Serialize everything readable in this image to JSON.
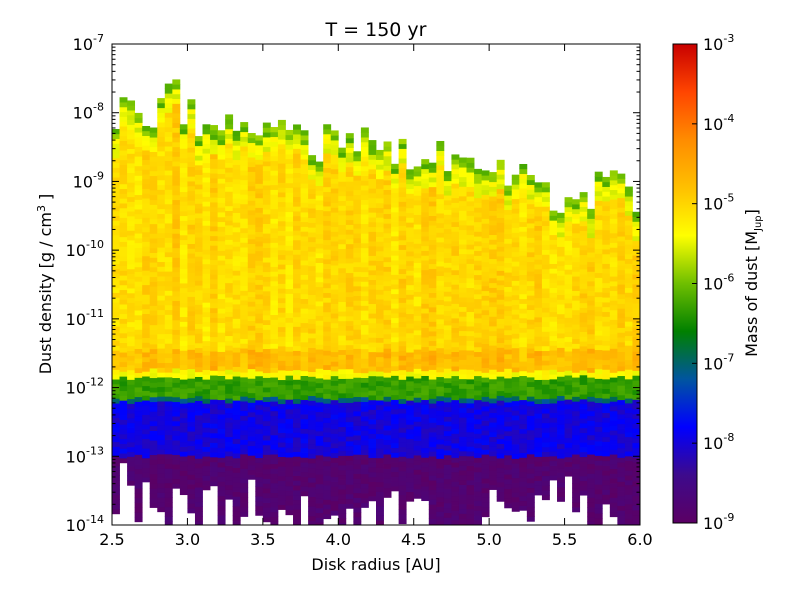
{
  "chart_data": {
    "type": "heatmap",
    "title": "T =  150 yr",
    "xlabel": "Disk radius [AU]",
    "ylabel": {
      "prefix": "Dust density [g / cm",
      "sup": "3",
      "suffix": " ]"
    },
    "xlim": [
      2.5,
      6.0
    ],
    "ylim": [
      1e-14,
      1e-07
    ],
    "yscale": "log",
    "xticks": [
      "2.5",
      "3.0",
      "3.5",
      "4.0",
      "4.5",
      "5.0",
      "5.5",
      "6.0"
    ],
    "yticks": [
      {
        "base": "10",
        "exp": "-14"
      },
      {
        "base": "10",
        "exp": "-13"
      },
      {
        "base": "10",
        "exp": "-12"
      },
      {
        "base": "10",
        "exp": "-11"
      },
      {
        "base": "10",
        "exp": "-10"
      },
      {
        "base": "10",
        "exp": "-9"
      },
      {
        "base": "10",
        "exp": "-8"
      },
      {
        "base": "10",
        "exp": "-7"
      }
    ],
    "colorbar": {
      "label": {
        "prefix": "Mass of dust [M",
        "sub": "Jup",
        "suffix": "]"
      },
      "scale": "log",
      "range": [
        1e-09,
        0.001
      ],
      "ticks": [
        {
          "base": "10",
          "exp": "-9"
        },
        {
          "base": "10",
          "exp": "-8"
        },
        {
          "base": "10",
          "exp": "-7"
        },
        {
          "base": "10",
          "exp": "-6"
        },
        {
          "base": "10",
          "exp": "-5"
        },
        {
          "base": "10",
          "exp": "-4"
        },
        {
          "base": "10",
          "exp": "-3"
        }
      ],
      "colormap": [
        "#5b0064",
        "#3d0a8c",
        "#0000ff",
        "#0055a0",
        "#008000",
        "#6fbf00",
        "#ffff00",
        "#ffc000",
        "#ff8c00",
        "#ff4500",
        "#c80000"
      ]
    },
    "x_bins": 70,
    "top_envelope_log": [
      [
        2.5,
        -8.0
      ],
      [
        2.8,
        -8.0
      ],
      [
        2.9,
        -7.6
      ],
      [
        3.0,
        -8.1
      ],
      [
        3.2,
        -8.2
      ],
      [
        3.5,
        -8.2
      ],
      [
        3.7,
        -8.4
      ],
      [
        4.0,
        -8.5
      ],
      [
        4.3,
        -8.5
      ],
      [
        4.5,
        -8.6
      ],
      [
        4.8,
        -8.75
      ],
      [
        5.0,
        -8.8
      ],
      [
        5.3,
        -9.1
      ],
      [
        5.5,
        -9.3
      ],
      [
        5.6,
        -9.25
      ],
      [
        5.8,
        -9.1
      ],
      [
        6.0,
        -9.3
      ]
    ],
    "dense_layer_log": [
      -11.55,
      -11.75
    ],
    "green_band_log": [
      -11.85,
      -12.15
    ],
    "blue_band_log": [
      -12.2,
      -13.0
    ],
    "bottom_envelope_log": [
      [
        2.5,
        -13.0
      ],
      [
        2.8,
        -13.1
      ],
      [
        3.0,
        -13.2
      ],
      [
        3.2,
        -13.4
      ],
      [
        3.5,
        -13.3
      ],
      [
        3.8,
        -13.5
      ],
      [
        4.0,
        -13.6
      ],
      [
        4.3,
        -13.4
      ],
      [
        4.6,
        -13.6
      ],
      [
        5.0,
        -13.5
      ],
      [
        5.3,
        -13.3
      ],
      [
        5.5,
        -13.2
      ],
      [
        5.8,
        -13.4
      ],
      [
        6.0,
        -13.6
      ]
    ]
  }
}
